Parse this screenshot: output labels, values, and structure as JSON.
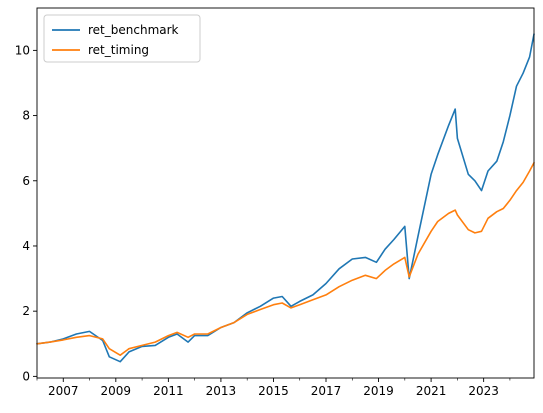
{
  "chart_data": {
    "type": "line",
    "title": "",
    "xlabel": "",
    "ylabel": "",
    "x_axis_kind": "date",
    "xlim": [
      "2006-01",
      "2024-12"
    ],
    "ylim": [
      -0.05,
      11.3
    ],
    "x_ticks": [
      "2007",
      "2009",
      "2011",
      "2013",
      "2015",
      "2017",
      "2019",
      "2021",
      "2023"
    ],
    "y_ticks": [
      0,
      2,
      4,
      6,
      8,
      10
    ],
    "grid": false,
    "legend": "upper-left",
    "colors": {
      "ret_benchmark": "#1f77b4",
      "ret_timing": "#ff7f0e"
    },
    "x": [
      "2006-01",
      "2006-07",
      "2007-01",
      "2007-07",
      "2008-01",
      "2008-07",
      "2008-10",
      "2009-03",
      "2009-07",
      "2010-01",
      "2010-07",
      "2011-01",
      "2011-05",
      "2011-10",
      "2012-01",
      "2012-07",
      "2013-01",
      "2013-07",
      "2014-01",
      "2014-07",
      "2015-01",
      "2015-05",
      "2015-09",
      "2016-01",
      "2016-07",
      "2017-01",
      "2017-07",
      "2018-01",
      "2018-07",
      "2018-12",
      "2019-04",
      "2019-08",
      "2020-01",
      "2020-03",
      "2020-07",
      "2021-01",
      "2021-04",
      "2021-09",
      "2021-12",
      "2022-01",
      "2022-06",
      "2022-09",
      "2022-12",
      "2023-03",
      "2023-07",
      "2023-10",
      "2024-01",
      "2024-04",
      "2024-07",
      "2024-10",
      "2024-12"
    ],
    "series": [
      {
        "name": "ret_benchmark",
        "values": [
          1.0,
          1.05,
          1.15,
          1.3,
          1.38,
          1.1,
          0.6,
          0.45,
          0.75,
          0.92,
          0.95,
          1.2,
          1.3,
          1.05,
          1.25,
          1.25,
          1.5,
          1.65,
          1.95,
          2.15,
          2.4,
          2.45,
          2.15,
          2.3,
          2.5,
          2.85,
          3.3,
          3.6,
          3.65,
          3.5,
          3.9,
          4.2,
          4.6,
          3.0,
          4.3,
          6.2,
          6.8,
          7.7,
          8.2,
          7.3,
          6.2,
          6.0,
          5.7,
          6.3,
          6.6,
          7.2,
          8.0,
          8.9,
          9.3,
          9.8,
          10.5
        ]
      },
      {
        "name": "ret_timing",
        "values": [
          1.0,
          1.05,
          1.12,
          1.2,
          1.25,
          1.15,
          0.85,
          0.65,
          0.85,
          0.95,
          1.05,
          1.25,
          1.35,
          1.2,
          1.3,
          1.3,
          1.5,
          1.65,
          1.9,
          2.05,
          2.2,
          2.25,
          2.1,
          2.2,
          2.35,
          2.5,
          2.75,
          2.95,
          3.1,
          3.0,
          3.25,
          3.45,
          3.65,
          3.05,
          3.75,
          4.45,
          4.75,
          5.0,
          5.1,
          4.95,
          4.5,
          4.4,
          4.45,
          4.85,
          5.05,
          5.15,
          5.4,
          5.7,
          5.95,
          6.3,
          6.55
        ]
      }
    ]
  }
}
